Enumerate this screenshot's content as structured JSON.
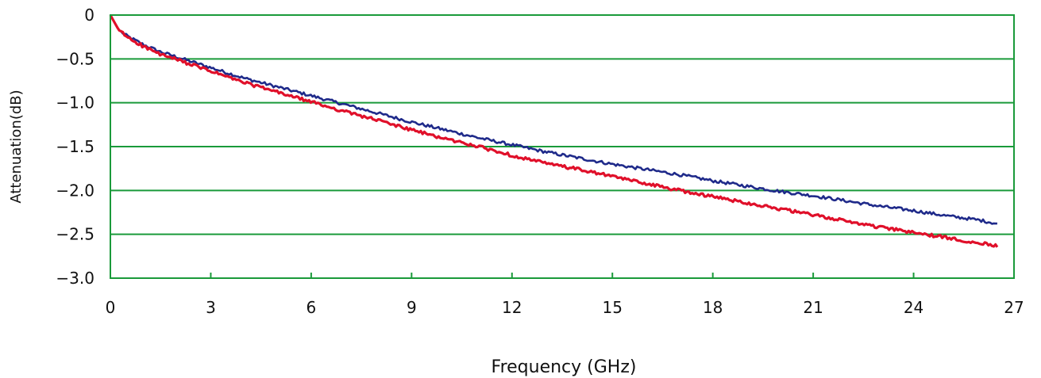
{
  "chart_data": {
    "type": "line",
    "title": "",
    "xlabel": "Frequency (GHz)",
    "ylabel": "Attenuation(dB)",
    "xlim": [
      0,
      27
    ],
    "ylim": [
      -3.0,
      0
    ],
    "x_ticks": [
      0,
      3,
      6,
      9,
      12,
      15,
      18,
      21,
      24,
      27
    ],
    "x_tick_labels": [
      "0",
      "3",
      "6",
      "9",
      "12",
      "15",
      "18",
      "21",
      "24",
      "27"
    ],
    "y_ticks": [
      0,
      -0.5,
      -1.0,
      -1.5,
      -2.0,
      -2.5,
      -3.0
    ],
    "y_tick_labels": [
      "0",
      "−0.5",
      "−1.0",
      "−1.5",
      "−2.0",
      "−2.5",
      "−3.0"
    ],
    "grid": "horizontal",
    "legend": "none",
    "colors": {
      "grid": "#1a9a3a",
      "frame": "#1a9a3a",
      "series_1": "#1f2a8a",
      "series_2": "#e0102a"
    },
    "series": [
      {
        "color": "#1f2a8a",
        "x": [
          0,
          0.25,
          0.5,
          1,
          1.5,
          2,
          3,
          4,
          5,
          6,
          7,
          8,
          9,
          10,
          11,
          12,
          13,
          14,
          15,
          16,
          17,
          18,
          19,
          20,
          21,
          22,
          23,
          24,
          25,
          26,
          26.5
        ],
        "y": [
          0,
          -0.17,
          -0.24,
          -0.34,
          -0.42,
          -0.48,
          -0.6,
          -0.72,
          -0.82,
          -0.92,
          -1.02,
          -1.12,
          -1.22,
          -1.31,
          -1.4,
          -1.48,
          -1.56,
          -1.63,
          -1.7,
          -1.76,
          -1.82,
          -1.89,
          -1.95,
          -2.01,
          -2.06,
          -2.12,
          -2.18,
          -2.23,
          -2.29,
          -2.34,
          -2.38
        ]
      },
      {
        "color": "#e0102a",
        "x": [
          0,
          0.25,
          0.5,
          1,
          1.5,
          2,
          3,
          4,
          5,
          6,
          7,
          8,
          9,
          10,
          11,
          12,
          13,
          14,
          15,
          16,
          17,
          18,
          19,
          20,
          21,
          22,
          23,
          24,
          25,
          26,
          26.5
        ],
        "y": [
          0,
          -0.17,
          -0.25,
          -0.36,
          -0.45,
          -0.51,
          -0.64,
          -0.77,
          -0.88,
          -0.99,
          -1.1,
          -1.2,
          -1.31,
          -1.41,
          -1.5,
          -1.6,
          -1.69,
          -1.76,
          -1.84,
          -1.92,
          -2.0,
          -2.07,
          -2.14,
          -2.21,
          -2.28,
          -2.35,
          -2.42,
          -2.48,
          -2.54,
          -2.6,
          -2.63
        ]
      }
    ]
  }
}
